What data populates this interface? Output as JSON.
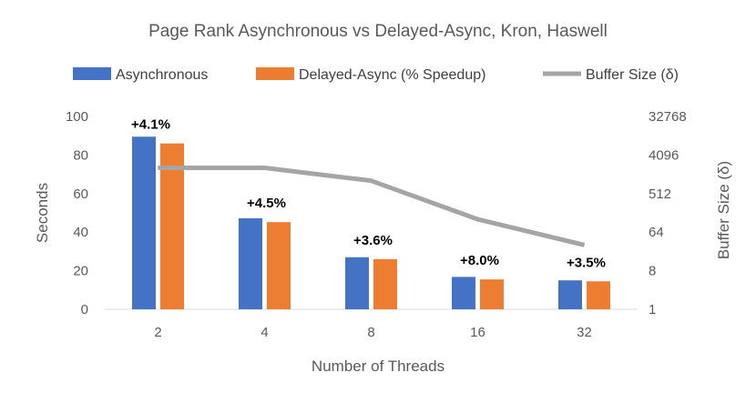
{
  "chart_data": {
    "type": "bar",
    "title": "Page Rank Asynchronous vs Delayed-Async, Kron, Haswell",
    "categories": [
      "2",
      "4",
      "8",
      "16",
      "32"
    ],
    "xlabel": "Number of Threads",
    "ylabel": "Seconds",
    "y2label": "Buffer Size (δ)",
    "ylim": [
      0,
      100
    ],
    "yticks": [
      "0",
      "20",
      "40",
      "60",
      "80",
      "100"
    ],
    "y2ticks": [
      "1",
      "8",
      "64",
      "512",
      "4096",
      "32768"
    ],
    "y2log": true,
    "y2base": 2,
    "y2lim_exp": [
      0,
      15
    ],
    "grid": false,
    "legend_position": "top",
    "series": [
      {
        "name": "Asynchronous",
        "type": "bar",
        "axis": "left",
        "color": "#4472C4",
        "values": [
          89.5,
          47.2,
          27.0,
          16.8,
          15.0
        ]
      },
      {
        "name": "Delayed-Async (% Speedup)",
        "type": "bar",
        "axis": "left",
        "color": "#ED7D31",
        "values": [
          86.0,
          45.2,
          26.0,
          15.5,
          14.5
        ],
        "labels": [
          "+4.1%",
          "+4.5%",
          "+3.6%",
          "+8.0%",
          "+3.5%"
        ]
      },
      {
        "name": "Buffer Size (δ)",
        "type": "line",
        "axis": "right",
        "color": "#A5A5A5",
        "values": [
          2048,
          2048,
          1024,
          128,
          32
        ]
      }
    ]
  }
}
